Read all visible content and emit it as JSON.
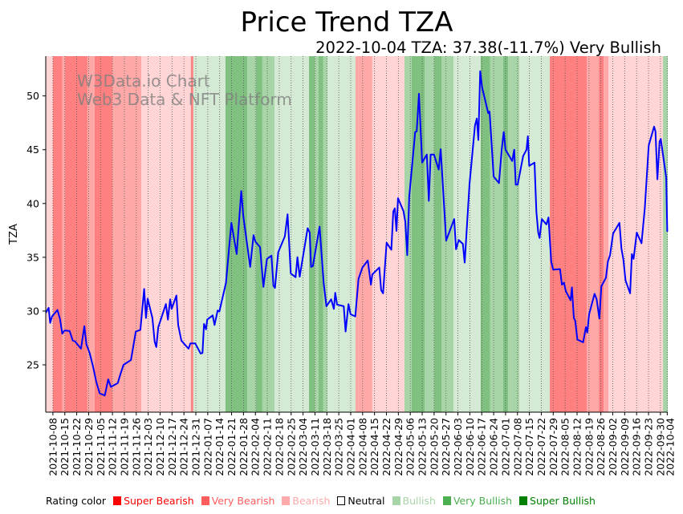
{
  "chart_data": {
    "type": "line",
    "title": "Price Trend TZA",
    "subtitle": "2022-10-04 TZA: 37.38(-11.7%) Very Bullish",
    "watermark": [
      "W3Data.io Chart",
      "Web3 Data & NFT Platform"
    ],
    "xlabel": "",
    "ylabel": "TZA",
    "x_unit": "days since 2021-10-08",
    "x_origin_date": "2021-10-08",
    "xlim": [
      -4.2,
      361.3
    ],
    "ylim": [
      20.6,
      53.7
    ],
    "yticks": [
      25,
      30,
      35,
      40,
      45,
      50
    ],
    "xtick_labels": [
      "2021-10-08",
      "2021-10-15",
      "2021-10-22",
      "2021-10-29",
      "2021-11-05",
      "2021-11-12",
      "2021-11-19",
      "2021-11-26",
      "2021-12-03",
      "2021-12-10",
      "2021-12-17",
      "2021-12-24",
      "2021-12-31",
      "2022-01-07",
      "2022-01-14",
      "2022-01-21",
      "2022-01-28",
      "2022-02-04",
      "2022-02-11",
      "2022-02-18",
      "2022-02-25",
      "2022-03-04",
      "2022-03-11",
      "2022-03-18",
      "2022-03-25",
      "2022-04-01",
      "2022-04-08",
      "2022-04-15",
      "2022-04-22",
      "2022-04-29",
      "2022-05-06",
      "2022-05-13",
      "2022-05-20",
      "2022-05-27",
      "2022-06-03",
      "2022-06-10",
      "2022-06-17",
      "2022-06-24",
      "2022-07-01",
      "2022-07-08",
      "2022-07-15",
      "2022-07-22",
      "2022-07-29",
      "2022-08-05",
      "2022-08-12",
      "2022-08-19",
      "2022-08-26",
      "2022-09-02",
      "2022-09-09",
      "2022-09-16",
      "2022-09-23",
      "2022-09-30",
      "2022-10-04"
    ],
    "grid": "vertical dotted at x ticks",
    "series": [
      {
        "name": "TZA",
        "color": "#0000ff",
        "points": [
          [
            -4.1,
            29.85
          ],
          [
            -2.5,
            30.3
          ],
          [
            -1.6,
            28.9
          ],
          [
            -0.5,
            29.5
          ],
          [
            2.7,
            30.1
          ],
          [
            4.2,
            29.25
          ],
          [
            5.5,
            27.9
          ],
          [
            6.9,
            28.2
          ],
          [
            9.8,
            28.15
          ],
          [
            11.7,
            27.25
          ],
          [
            12.9,
            27.2
          ],
          [
            16.5,
            26.5
          ],
          [
            18.5,
            28.6
          ],
          [
            19.7,
            26.9
          ],
          [
            21.6,
            26.1
          ],
          [
            23.6,
            24.85
          ],
          [
            25.5,
            23.4
          ],
          [
            27.5,
            22.35
          ],
          [
            30.5,
            22.15
          ],
          [
            32.5,
            23.65
          ],
          [
            34.1,
            22.95
          ],
          [
            38.1,
            23.3
          ],
          [
            39.6,
            24.1
          ],
          [
            41.5,
            25
          ],
          [
            45.9,
            25.45
          ],
          [
            48.7,
            28.1
          ],
          [
            51.4,
            28.25
          ],
          [
            53.6,
            32.05
          ],
          [
            54.7,
            29.35
          ],
          [
            55.7,
            31.15
          ],
          [
            58.5,
            29.35
          ],
          [
            59.8,
            27.15
          ],
          [
            60.8,
            26.65
          ],
          [
            61.9,
            28.5
          ],
          [
            66.4,
            30.65
          ],
          [
            67.6,
            29.2
          ],
          [
            68.9,
            31.1
          ],
          [
            69.8,
            30.2
          ],
          [
            72.6,
            31.45
          ],
          [
            73.6,
            28.7
          ],
          [
            75.5,
            27.25
          ],
          [
            79.7,
            26.5
          ],
          [
            80.8,
            27
          ],
          [
            83.6,
            27
          ],
          [
            86.8,
            26.05
          ],
          [
            87.9,
            26.1
          ],
          [
            88.8,
            28.8
          ],
          [
            90,
            28.3
          ],
          [
            90.7,
            29.2
          ],
          [
            93.9,
            29.6
          ],
          [
            95,
            28.7
          ],
          [
            96.8,
            30.05
          ],
          [
            97.8,
            29.95
          ],
          [
            101.7,
            32.6
          ],
          [
            104.9,
            38.2
          ],
          [
            108,
            35.3
          ],
          [
            110.7,
            41.15
          ],
          [
            111.9,
            38.8
          ],
          [
            115.9,
            34.1
          ],
          [
            117.9,
            37.05
          ],
          [
            119,
            36.45
          ],
          [
            121.7,
            35.95
          ],
          [
            123.7,
            32.25
          ],
          [
            125.8,
            34.85
          ],
          [
            128.4,
            35.15
          ],
          [
            129.6,
            32.35
          ],
          [
            130.5,
            32.15
          ],
          [
            132.4,
            35.45
          ],
          [
            136.3,
            36.95
          ],
          [
            137.9,
            39
          ],
          [
            139.8,
            33.5
          ],
          [
            142.6,
            33.15
          ],
          [
            143.7,
            35
          ],
          [
            145,
            33.2
          ],
          [
            149.7,
            37.7
          ],
          [
            150.9,
            37.3
          ],
          [
            151.7,
            34.1
          ],
          [
            152.8,
            34.2
          ],
          [
            156.7,
            37.85
          ],
          [
            159.1,
            32.6
          ],
          [
            160.7,
            30.45
          ],
          [
            163.5,
            31.1
          ],
          [
            165.1,
            30.2
          ],
          [
            165.9,
            31.7
          ],
          [
            167,
            30.6
          ],
          [
            170.9,
            30.45
          ],
          [
            172,
            28.1
          ],
          [
            173.7,
            30.65
          ],
          [
            174.9,
            29.7
          ],
          [
            177.7,
            29.5
          ],
          [
            179.6,
            33
          ],
          [
            181.9,
            34.05
          ],
          [
            185,
            34.7
          ],
          [
            186.9,
            32.45
          ],
          [
            187.7,
            33.4
          ],
          [
            191.8,
            34.05
          ],
          [
            192.9,
            31.95
          ],
          [
            194,
            31.65
          ],
          [
            196.1,
            36.35
          ],
          [
            198.9,
            35.7
          ],
          [
            200,
            39.25
          ],
          [
            200.9,
            39.55
          ],
          [
            201.9,
            37.45
          ],
          [
            202.8,
            40.5
          ],
          [
            206,
            39.3
          ],
          [
            207.1,
            38.3
          ],
          [
            208.2,
            35.2
          ],
          [
            209.4,
            40.65
          ],
          [
            212.9,
            46.65
          ],
          [
            213.8,
            46.7
          ],
          [
            215.1,
            50.2
          ],
          [
            217,
            43.8
          ],
          [
            219.7,
            44.55
          ],
          [
            220.9,
            40.25
          ],
          [
            222,
            44.55
          ],
          [
            223.9,
            44.55
          ],
          [
            226.7,
            43.15
          ],
          [
            227.9,
            45.05
          ],
          [
            231.1,
            36.55
          ],
          [
            235.8,
            38.55
          ],
          [
            236.9,
            35.75
          ],
          [
            238.5,
            36.6
          ],
          [
            240.9,
            36.25
          ],
          [
            242,
            34.5
          ],
          [
            244.8,
            41.8
          ],
          [
            248,
            47.25
          ],
          [
            249.1,
            47.9
          ],
          [
            250,
            45.9
          ],
          [
            251.1,
            52.3
          ],
          [
            252.2,
            50.8
          ],
          [
            255.8,
            48.4
          ],
          [
            256.6,
            48.55
          ],
          [
            259,
            42.5
          ],
          [
            262.1,
            41.9
          ],
          [
            263.7,
            45
          ],
          [
            264.9,
            46.65
          ],
          [
            266,
            45
          ],
          [
            269.9,
            43.95
          ],
          [
            271.1,
            45
          ],
          [
            272,
            41.75
          ],
          [
            273.1,
            41.75
          ],
          [
            276.3,
            44.4
          ],
          [
            278.3,
            45
          ],
          [
            279.1,
            46.25
          ],
          [
            279.9,
            43.5
          ],
          [
            283,
            43.8
          ],
          [
            284.1,
            39.25
          ],
          [
            285.2,
            37.3
          ],
          [
            286,
            36.8
          ],
          [
            287.3,
            38.55
          ],
          [
            290,
            38.05
          ],
          [
            291.2,
            38.7
          ],
          [
            292.8,
            34.6
          ],
          [
            294,
            33.85
          ],
          [
            298,
            33.9
          ],
          [
            299.1,
            32.45
          ],
          [
            300.3,
            32.65
          ],
          [
            301.4,
            31.85
          ],
          [
            304.2,
            31
          ],
          [
            305,
            32.2
          ],
          [
            306.1,
            29.35
          ],
          [
            306.9,
            29.1
          ],
          [
            308.2,
            27.35
          ],
          [
            311.6,
            27.1
          ],
          [
            313.2,
            28.5
          ],
          [
            314,
            28
          ],
          [
            315.1,
            29.7
          ],
          [
            318.3,
            31.6
          ],
          [
            319.5,
            31.1
          ],
          [
            321.1,
            29.3
          ],
          [
            322.3,
            32.3
          ],
          [
            325,
            33.1
          ],
          [
            326.1,
            34.6
          ],
          [
            327.4,
            35.2
          ],
          [
            329.2,
            37.2
          ],
          [
            332.9,
            38.2
          ],
          [
            334.1,
            35.8
          ],
          [
            335.2,
            34.8
          ],
          [
            336.5,
            32.85
          ],
          [
            339.2,
            31.65
          ],
          [
            340.2,
            35.3
          ],
          [
            341.2,
            34.85
          ],
          [
            343.1,
            37.3
          ],
          [
            345.9,
            36.3
          ],
          [
            347.8,
            39.55
          ],
          [
            350.1,
            45.4
          ],
          [
            353.3,
            47.15
          ],
          [
            354.1,
            46.7
          ],
          [
            355.2,
            42.25
          ],
          [
            356.5,
            45.75
          ],
          [
            357.2,
            46
          ],
          [
            360.4,
            42.4
          ],
          [
            361,
            37.38
          ]
        ]
      }
    ],
    "rating_bands": [
      [
        -4.2,
        0,
        "Bearish"
      ],
      [
        0,
        5.5,
        "Super Bearish"
      ],
      [
        5.5,
        7,
        "Very Bearish"
      ],
      [
        7,
        20.3,
        "Super Bearish"
      ],
      [
        20.3,
        24.5,
        "Very Bearish"
      ],
      [
        24.5,
        35,
        "Super Bearish"
      ],
      [
        35,
        52,
        "Very Bearish"
      ],
      [
        52,
        81.1,
        "Bearish"
      ],
      [
        81.1,
        82.5,
        "Super Bearish"
      ],
      [
        82.5,
        101.4,
        "Bullish"
      ],
      [
        101.4,
        114.2,
        "Super Bullish"
      ],
      [
        114.2,
        119.3,
        "Very Bullish"
      ],
      [
        119.3,
        123.1,
        "Super Bullish"
      ],
      [
        123.1,
        130.2,
        "Very Bullish"
      ],
      [
        130.2,
        150.5,
        "Bullish"
      ],
      [
        150.5,
        153.8,
        "Super Bullish"
      ],
      [
        153.8,
        156.1,
        "Very Bullish"
      ],
      [
        156.1,
        158.9,
        "Super Bullish"
      ],
      [
        158.9,
        161.3,
        "Very Bullish"
      ],
      [
        161.3,
        177.8,
        "Bullish"
      ],
      [
        177.8,
        187.7,
        "Very Bearish"
      ],
      [
        187.7,
        206.6,
        "Bearish"
      ],
      [
        206.6,
        210.8,
        "Very Bullish"
      ],
      [
        210.8,
        218.4,
        "Super Bullish"
      ],
      [
        218.4,
        224,
        "Very Bullish"
      ],
      [
        224,
        228.3,
        "Super Bullish"
      ],
      [
        228.3,
        235.4,
        "Very Bullish"
      ],
      [
        235.4,
        251.4,
        "Bullish"
      ],
      [
        251.4,
        257,
        "Super Bullish"
      ],
      [
        257,
        264.6,
        "Very Bullish"
      ],
      [
        264.6,
        267.5,
        "Super Bullish"
      ],
      [
        267.5,
        274.1,
        "Very Bullish"
      ],
      [
        274.1,
        292,
        "Bullish"
      ],
      [
        292,
        313.7,
        "Super Bearish"
      ],
      [
        313.7,
        320.8,
        "Very Bearish"
      ],
      [
        320.8,
        323.6,
        "Super Bearish"
      ],
      [
        323.6,
        326.4,
        "Very Bearish"
      ],
      [
        326.4,
        358.5,
        "Bearish"
      ],
      [
        358.5,
        361.3,
        "Very Bullish"
      ]
    ],
    "band_colors": {
      "Super Bearish": "#ff8080",
      "Very Bearish": "#ffa8a8",
      "Bearish": "#ffd5d5",
      "Bullish": "#d5ead5",
      "Very Bullish": "#a8d5a8",
      "Super Bullish": "#80c080"
    },
    "legend": {
      "title": "Rating color",
      "items": [
        {
          "label": "Super Bearish",
          "color": "#ff0000",
          "text_color": "#ff0000"
        },
        {
          "label": "Very Bearish",
          "color": "#ff5c5c",
          "text_color": "#ff5c5c"
        },
        {
          "label": "Bearish",
          "color": "#ffaaaa",
          "text_color": "#ffaaaa"
        },
        {
          "label": "Neutral",
          "color": "#ffffff",
          "text_color": "#000000"
        },
        {
          "label": "Bullish",
          "color": "#a8d5a8",
          "text_color": "#a8d5a8"
        },
        {
          "label": "Very Bullish",
          "color": "#4caf50",
          "text_color": "#4caf50"
        },
        {
          "label": "Super Bullish",
          "color": "#008000",
          "text_color": "#008000"
        }
      ]
    }
  }
}
